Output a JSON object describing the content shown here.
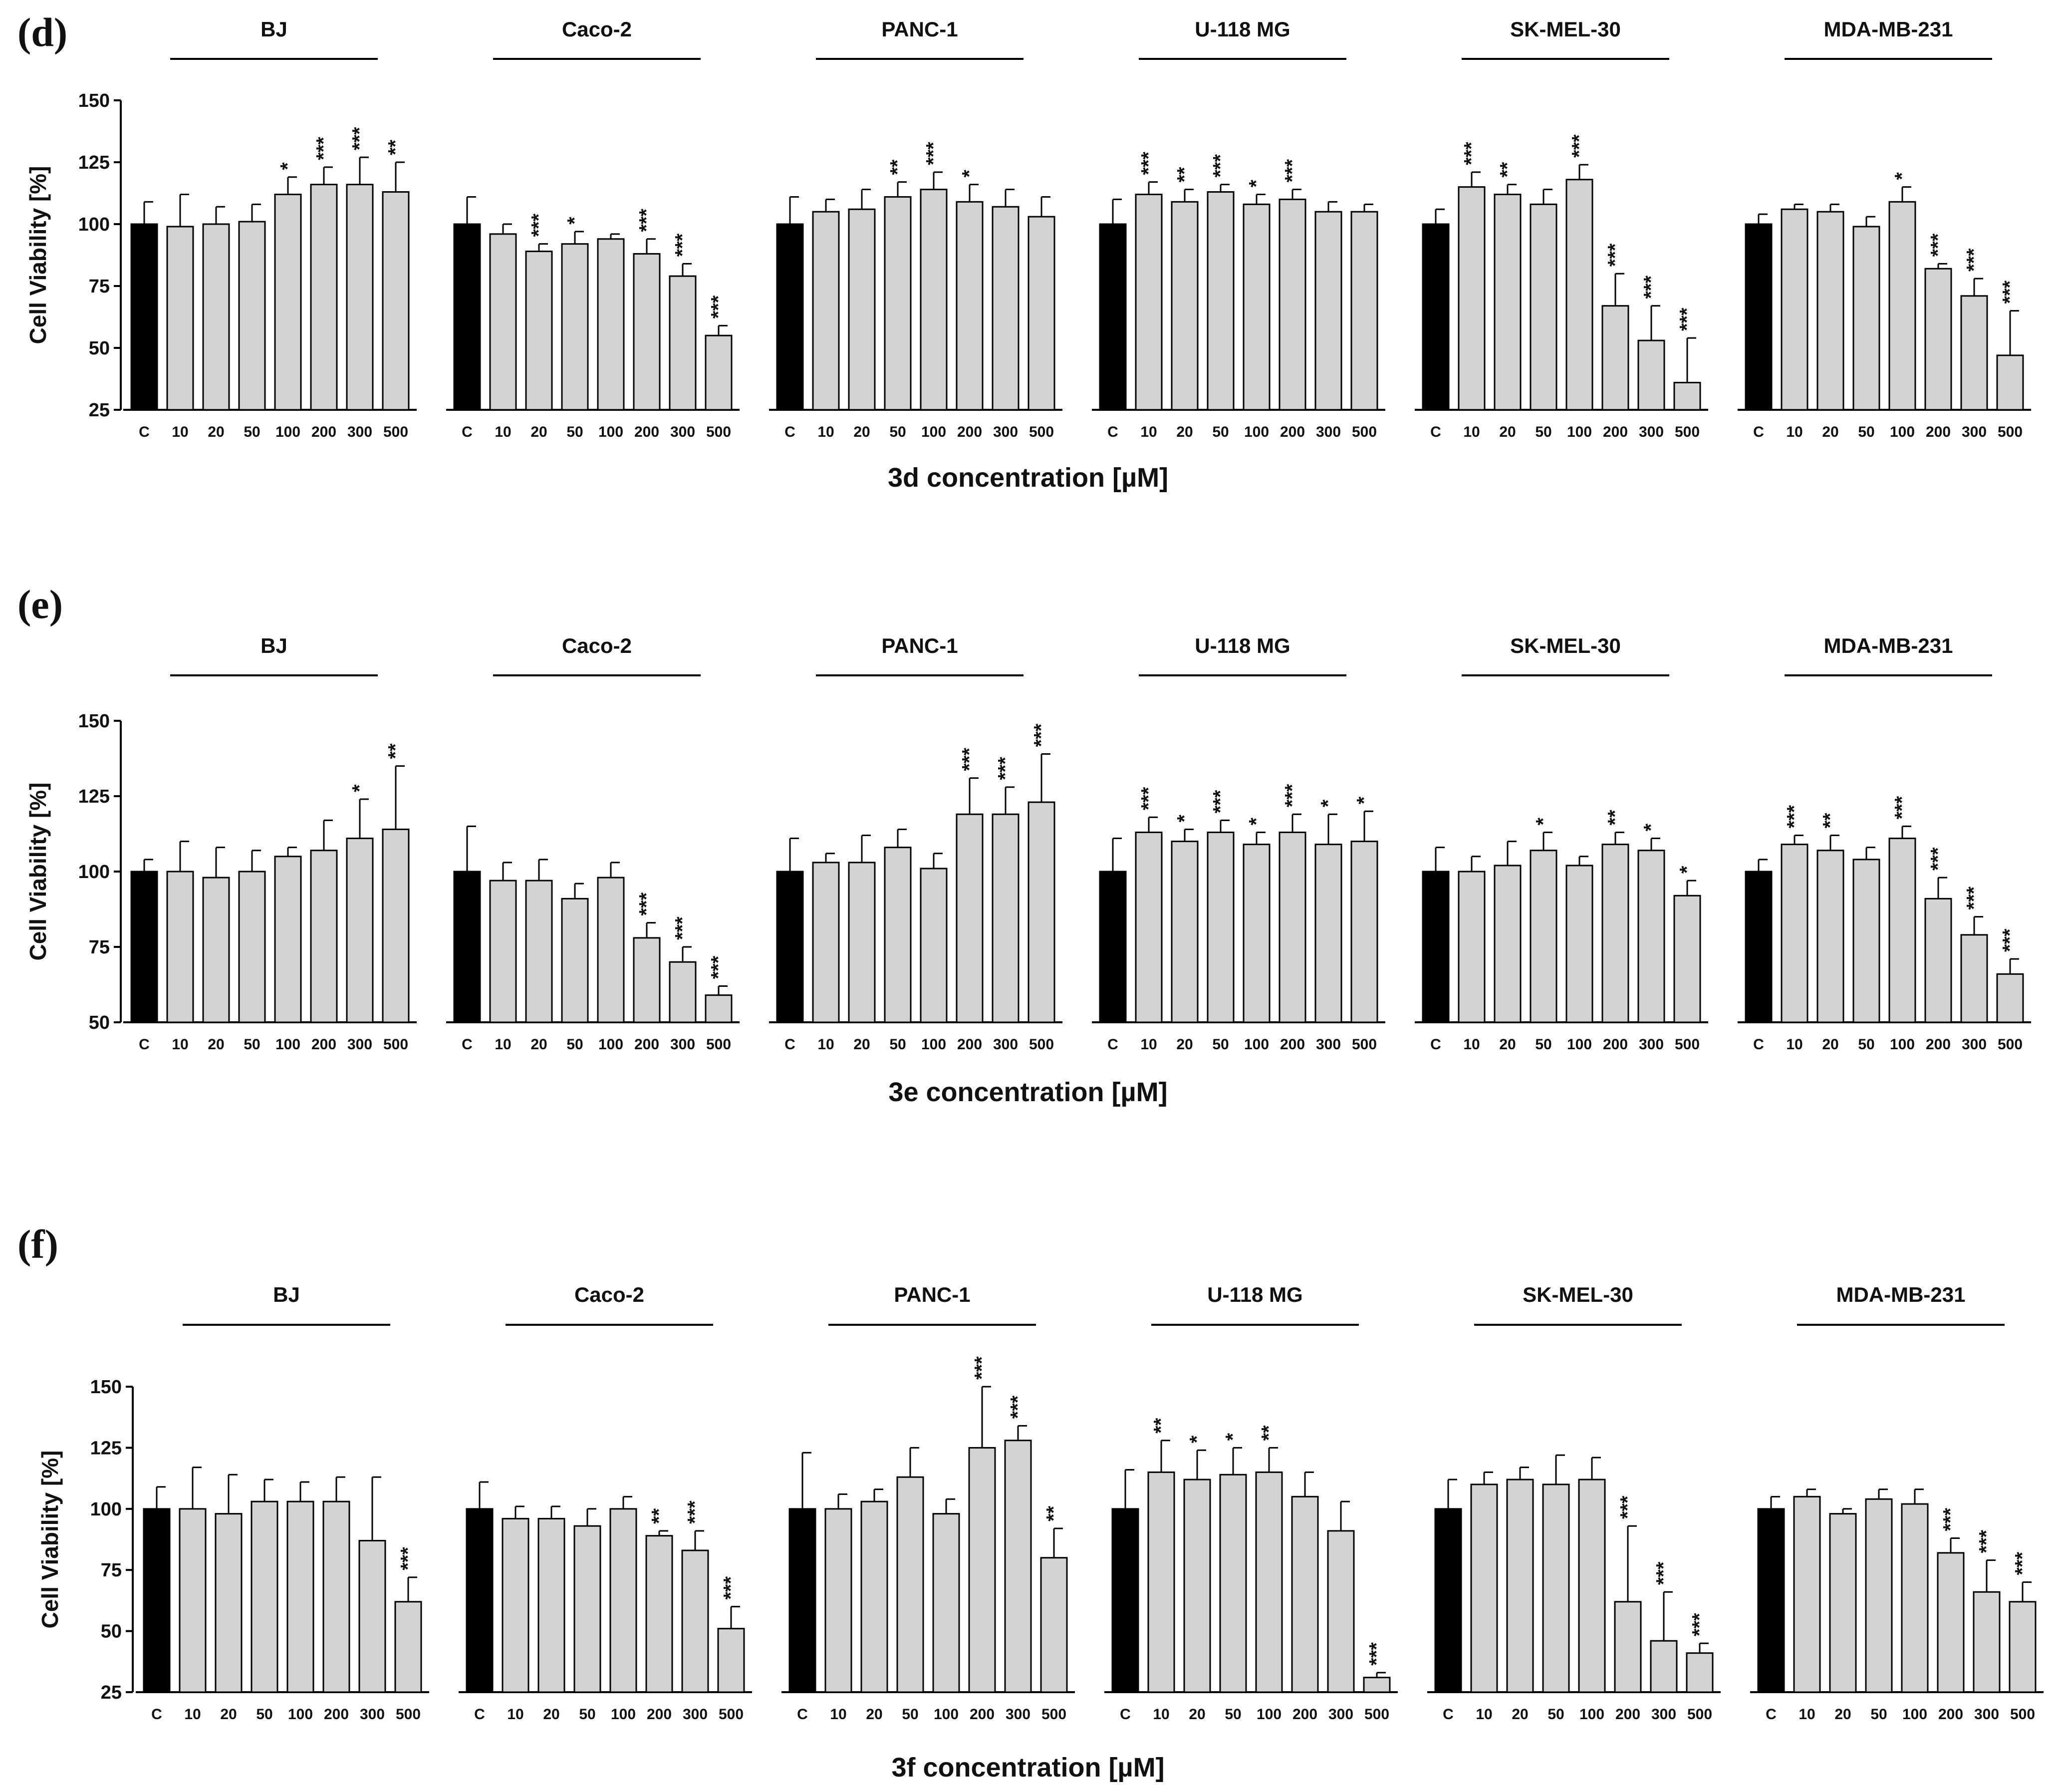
{
  "figure": {
    "x_categories": [
      "C",
      "10",
      "20",
      "50",
      "100",
      "200",
      "300",
      "500"
    ],
    "cell_lines": [
      "BJ",
      "Caco-2",
      "PANC-1",
      "U-118 MG",
      "SK-MEL-30",
      "MDA-MB-231"
    ],
    "ylabel": "Cell Viability [%]",
    "colors": {
      "control": "#000000",
      "treated": "#d3d3d3",
      "edge": "#000000"
    }
  },
  "chart_data": [
    {
      "type": "bar",
      "panel": "(d)",
      "xlabel": "3d concentration [µM]",
      "ylabel": "Cell Viability [%]",
      "ylim": [
        25,
        150
      ],
      "yticks": [
        25,
        50,
        75,
        100,
        125,
        150
      ],
      "groups": [
        {
          "name": "BJ",
          "values": [
            100,
            99,
            100,
            101,
            112,
            116,
            116,
            113
          ],
          "errors": [
            9,
            13,
            7,
            7,
            7,
            7,
            11,
            12
          ],
          "sig": [
            "",
            "",
            "",
            "",
            "*",
            "***",
            "***",
            "**"
          ]
        },
        {
          "name": "Caco-2",
          "values": [
            100,
            96,
            89,
            92,
            94,
            88,
            79,
            55
          ],
          "errors": [
            11,
            4,
            3,
            5,
            2,
            6,
            5,
            4
          ],
          "sig": [
            "",
            "",
            "***",
            "*",
            "",
            "***",
            "***",
            "***"
          ]
        },
        {
          "name": "PANC-1",
          "values": [
            100,
            105,
            106,
            111,
            114,
            109,
            107,
            103
          ],
          "errors": [
            11,
            5,
            8,
            6,
            7,
            7,
            7,
            8
          ],
          "sig": [
            "",
            "",
            "",
            "**",
            "***",
            "*",
            "",
            ""
          ]
        },
        {
          "name": "U-118 MG",
          "values": [
            100,
            112,
            109,
            113,
            108,
            110,
            105,
            105
          ],
          "errors": [
            10,
            5,
            5,
            3,
            4,
            4,
            4,
            3
          ],
          "sig": [
            "",
            "***",
            "**",
            "***",
            "*",
            "***",
            "",
            ""
          ]
        },
        {
          "name": "SK-MEL-30",
          "values": [
            100,
            115,
            112,
            108,
            118,
            67,
            53,
            36
          ],
          "errors": [
            6,
            6,
            4,
            6,
            6,
            13,
            14,
            18
          ],
          "sig": [
            "",
            "***",
            "**",
            "",
            "***",
            "***",
            "***",
            "***"
          ]
        },
        {
          "name": "MDA-MB-231",
          "values": [
            100,
            106,
            105,
            99,
            109,
            82,
            71,
            47
          ],
          "errors": [
            4,
            2,
            3,
            4,
            6,
            2,
            7,
            18
          ],
          "sig": [
            "",
            "",
            "",
            "",
            "*",
            "***",
            "***",
            "***"
          ]
        }
      ]
    },
    {
      "type": "bar",
      "panel": "(e)",
      "xlabel": "3e concentration [µM]",
      "ylabel": "Cell Viability [%]",
      "ylim": [
        50,
        150
      ],
      "yticks": [
        50,
        75,
        100,
        125,
        150
      ],
      "groups": [
        {
          "name": "BJ",
          "values": [
            100,
            100,
            98,
            100,
            105,
            107,
            111,
            114
          ],
          "errors": [
            4,
            10,
            10,
            7,
            3,
            10,
            13,
            21
          ],
          "sig": [
            "",
            "",
            "",
            "",
            "",
            "",
            "*",
            "**"
          ]
        },
        {
          "name": "Caco-2",
          "values": [
            100,
            97,
            97,
            91,
            98,
            78,
            70,
            59
          ],
          "errors": [
            15,
            6,
            7,
            5,
            5,
            5,
            5,
            3
          ],
          "sig": [
            "",
            "",
            "",
            "",
            "",
            "***",
            "***",
            "***"
          ]
        },
        {
          "name": "PANC-1",
          "values": [
            100,
            103,
            103,
            108,
            101,
            119,
            119,
            123
          ],
          "errors": [
            11,
            3,
            9,
            6,
            5,
            12,
            9,
            16
          ],
          "sig": [
            "",
            "",
            "",
            "",
            "",
            "***",
            "***",
            "***"
          ]
        },
        {
          "name": "U-118 MG",
          "values": [
            100,
            113,
            110,
            113,
            109,
            113,
            109,
            110
          ],
          "errors": [
            11,
            5,
            4,
            4,
            4,
            6,
            10,
            10
          ],
          "sig": [
            "",
            "***",
            "*",
            "***",
            "*",
            "***",
            "*",
            "*"
          ]
        },
        {
          "name": "SK-MEL-30",
          "values": [
            100,
            100,
            102,
            107,
            102,
            109,
            107,
            92
          ],
          "errors": [
            8,
            5,
            8,
            6,
            3,
            4,
            4,
            5
          ],
          "sig": [
            "",
            "",
            "",
            "*",
            "",
            "**",
            "*",
            "*"
          ]
        },
        {
          "name": "MDA-MB-231",
          "values": [
            100,
            109,
            107,
            104,
            111,
            91,
            79,
            66
          ],
          "errors": [
            4,
            3,
            5,
            4,
            4,
            7,
            6,
            5
          ],
          "sig": [
            "",
            "***",
            "**",
            "",
            "***",
            "***",
            "***",
            "***"
          ]
        }
      ]
    },
    {
      "type": "bar",
      "panel": "(f)",
      "xlabel": "3f concentration [µM]",
      "ylabel": "Cell Viability [%]",
      "ylim": [
        25,
        150
      ],
      "yticks": [
        25,
        50,
        75,
        100,
        125,
        150
      ],
      "groups": [
        {
          "name": "BJ",
          "values": [
            100,
            100,
            98,
            103,
            103,
            103,
            87,
            62
          ],
          "errors": [
            9,
            17,
            16,
            9,
            8,
            10,
            26,
            10
          ],
          "sig": [
            "",
            "",
            "",
            "",
            "",
            "",
            "",
            "***"
          ]
        },
        {
          "name": "Caco-2",
          "values": [
            100,
            96,
            96,
            93,
            100,
            89,
            83,
            51
          ],
          "errors": [
            11,
            5,
            5,
            7,
            5,
            2,
            8,
            9
          ],
          "sig": [
            "",
            "",
            "",
            "",
            "",
            "**",
            "***",
            "***"
          ]
        },
        {
          "name": "PANC-1",
          "values": [
            100,
            100,
            103,
            113,
            98,
            125,
            128,
            80
          ],
          "errors": [
            23,
            6,
            5,
            12,
            6,
            25,
            6,
            12
          ],
          "sig": [
            "",
            "",
            "",
            "",
            "",
            "***",
            "***",
            "**"
          ]
        },
        {
          "name": "U-118 MG",
          "values": [
            100,
            115,
            112,
            114,
            115,
            105,
            91,
            31
          ],
          "errors": [
            16,
            13,
            12,
            11,
            10,
            10,
            12,
            2
          ],
          "sig": [
            "",
            "**",
            "*",
            "*",
            "**",
            "",
            "",
            "***"
          ]
        },
        {
          "name": "SK-MEL-30",
          "values": [
            100,
            110,
            112,
            110,
            112,
            62,
            46,
            41
          ],
          "errors": [
            12,
            5,
            5,
            12,
            9,
            31,
            20,
            4
          ],
          "sig": [
            "",
            "",
            "",
            "",
            "",
            "***",
            "***",
            "***"
          ]
        },
        {
          "name": "MDA-MB-231",
          "values": [
            100,
            105,
            98,
            104,
            102,
            82,
            66,
            62
          ],
          "errors": [
            5,
            3,
            2,
            4,
            6,
            6,
            13,
            8
          ],
          "sig": [
            "",
            "",
            "",
            "",
            "",
            "***",
            "***",
            "***"
          ]
        }
      ]
    }
  ]
}
